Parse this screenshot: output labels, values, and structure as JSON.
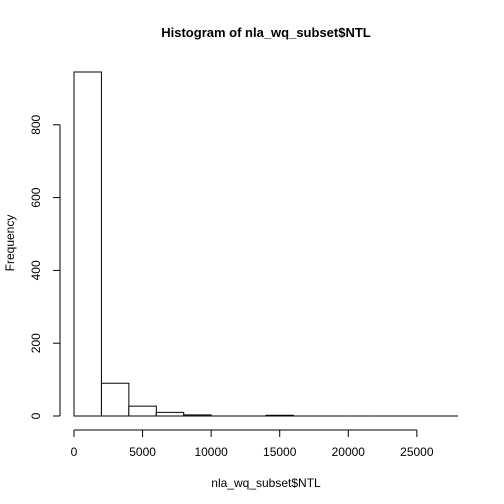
{
  "chart_data": {
    "type": "bar",
    "title": "Histogram of nla_wq_subset$NTL",
    "xlabel": "nla_wq_subset$NTL",
    "ylabel": "Frequency",
    "bin_width": 2000,
    "bins": [
      {
        "from": 0,
        "to": 2000,
        "count": 945
      },
      {
        "from": 2000,
        "to": 4000,
        "count": 90
      },
      {
        "from": 4000,
        "to": 6000,
        "count": 27
      },
      {
        "from": 6000,
        "to": 8000,
        "count": 10
      },
      {
        "from": 8000,
        "to": 10000,
        "count": 3
      },
      {
        "from": 10000,
        "to": 12000,
        "count": 0
      },
      {
        "from": 12000,
        "to": 14000,
        "count": 0
      },
      {
        "from": 14000,
        "to": 16000,
        "count": 2
      },
      {
        "from": 16000,
        "to": 18000,
        "count": 0
      },
      {
        "from": 18000,
        "to": 20000,
        "count": 0
      },
      {
        "from": 20000,
        "to": 22000,
        "count": 0
      },
      {
        "from": 22000,
        "to": 24000,
        "count": 0
      },
      {
        "from": 24000,
        "to": 26000,
        "count": 0
      },
      {
        "from": 26000,
        "to": 28000,
        "count": 0
      }
    ],
    "xlim": [
      0,
      28000
    ],
    "ylim": [
      0,
      945
    ],
    "xticks": [
      0,
      5000,
      10000,
      15000,
      20000,
      25000
    ],
    "xtick_labels": [
      "0",
      "5000",
      "10000",
      "15000",
      "20000",
      "25000"
    ],
    "yticks": [
      0,
      200,
      400,
      600,
      800
    ],
    "ytick_labels": [
      "0",
      "200",
      "400",
      "600",
      "800"
    ],
    "grid": false,
    "colors": {
      "bar_fill": "#ffffff",
      "bar_stroke": "#000000"
    }
  }
}
